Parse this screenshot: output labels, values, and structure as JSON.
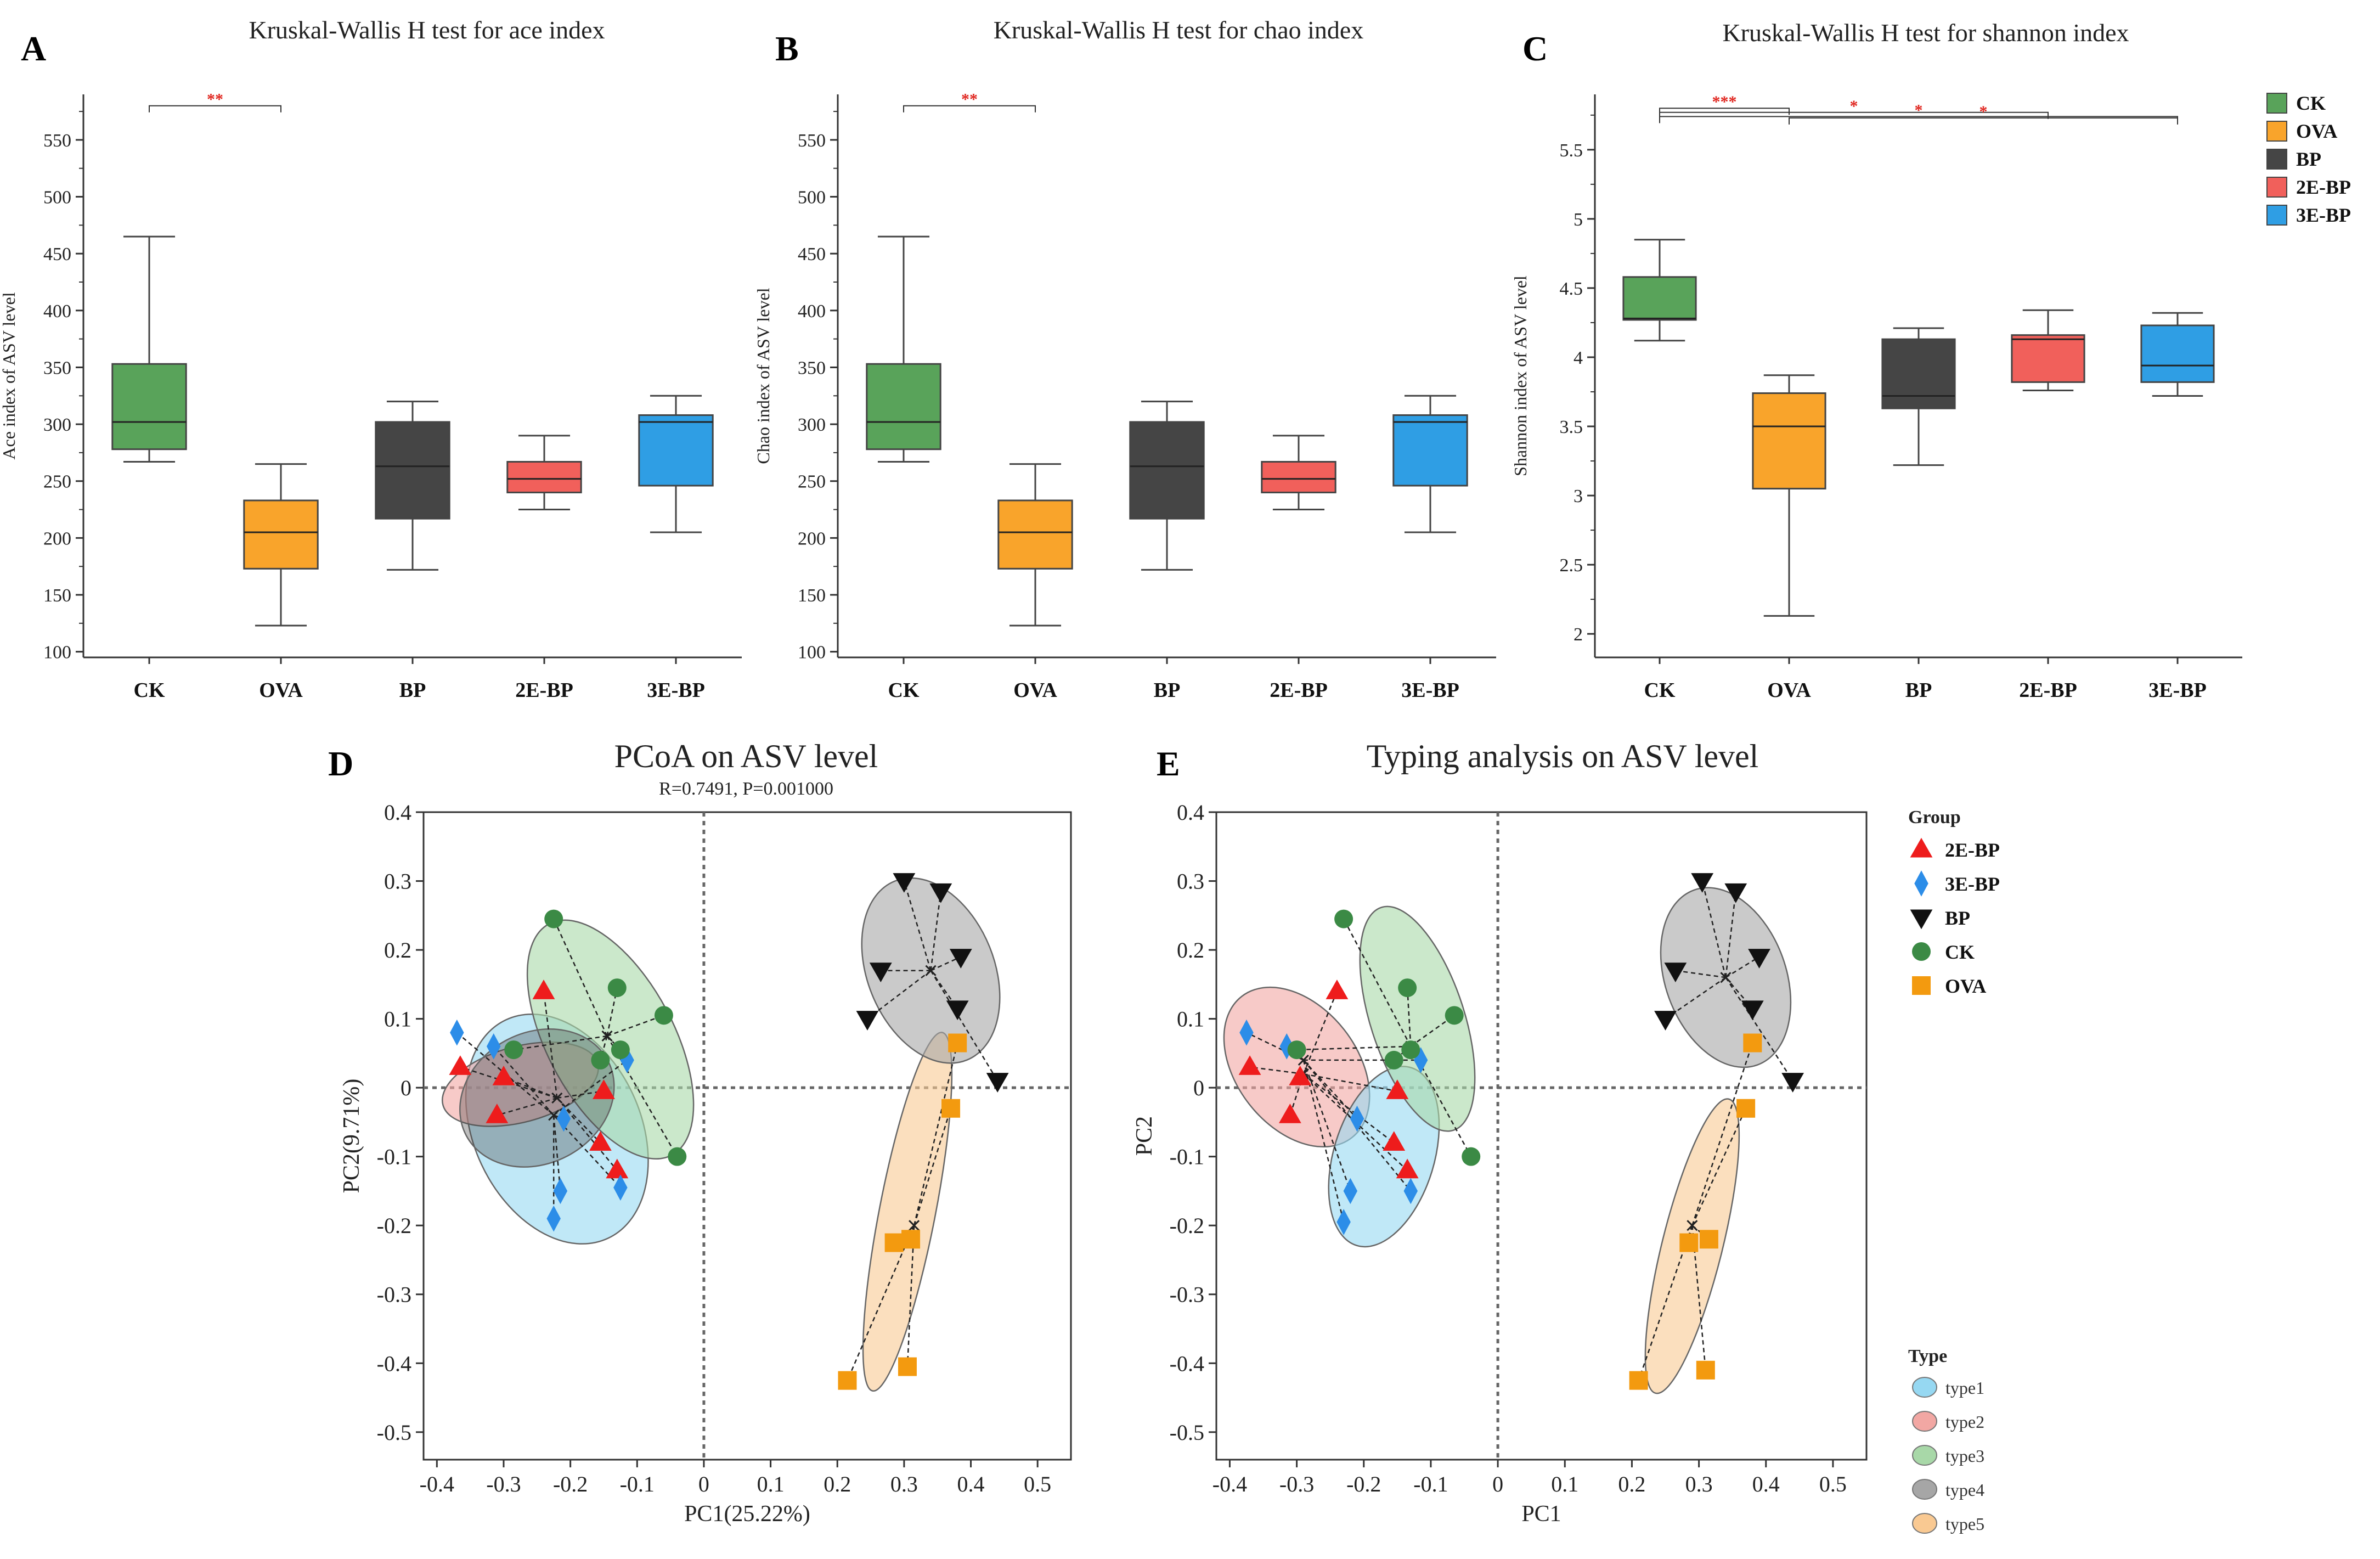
{
  "colors": {
    "CK": "#59a35a",
    "OVA": "#f9a42b",
    "BP": "#454545",
    "2E-BP": "#f1605b",
    "3E-BP": "#2f9ee4",
    "sig": "#e0261f",
    "type1": "#96d8f2",
    "type2": "#f2a7a3",
    "type3": "#a8d8a8",
    "type4": "#a6a6a6",
    "type5": "#f9c992",
    "tri2E": "#ee1c1c",
    "dia3E": "#2c8de8",
    "triBP": "#111111",
    "dotCK": "#3b8a45",
    "sqOVA": "#f39a0f"
  },
  "legend_top": {
    "items": [
      {
        "label": "CK",
        "key": "CK"
      },
      {
        "label": "OVA",
        "key": "OVA"
      },
      {
        "label": "BP",
        "key": "BP"
      },
      {
        "label": "2E-BP",
        "key": "2E-BP"
      },
      {
        "label": "3E-BP",
        "key": "3E-BP"
      }
    ]
  },
  "chart_data": [
    {
      "panel": "A",
      "type": "box",
      "title": "Kruskal-Wallis H test for ace index",
      "ylabel": "Ace index of ASV level",
      "xlabel": "",
      "ylim": [
        95,
        590
      ],
      "yticks": [
        100,
        150,
        200,
        250,
        300,
        350,
        400,
        450,
        500,
        550
      ],
      "categories": [
        "CK",
        "OVA",
        "BP",
        "2E-BP",
        "3E-BP"
      ],
      "boxes": [
        {
          "name": "CK",
          "whisker_low": 267,
          "q1": 278,
          "median": 302,
          "q3": 353,
          "whisker_high": 465
        },
        {
          "name": "OVA",
          "whisker_low": 123,
          "q1": 173,
          "median": 205,
          "q3": 233,
          "whisker_high": 265
        },
        {
          "name": "BP",
          "whisker_low": 172,
          "q1": 217,
          "median": 263,
          "q3": 302,
          "whisker_high": 320
        },
        {
          "name": "2E-BP",
          "whisker_low": 225,
          "q1": 240,
          "median": 252,
          "q3": 267,
          "whisker_high": 290
        },
        {
          "name": "3E-BP",
          "whisker_low": 205,
          "q1": 246,
          "median": 302,
          "q3": 308,
          "whisker_high": 325
        }
      ],
      "significance": [
        {
          "from": "CK",
          "to": "OVA",
          "label": "**",
          "y": 580
        }
      ]
    },
    {
      "panel": "B",
      "type": "box",
      "title": "Kruskal-Wallis H test for chao index",
      "ylabel": "Chao index of ASV level",
      "xlabel": "",
      "ylim": [
        95,
        590
      ],
      "yticks": [
        100,
        150,
        200,
        250,
        300,
        350,
        400,
        450,
        500,
        550
      ],
      "categories": [
        "CK",
        "OVA",
        "BP",
        "2E-BP",
        "3E-BP"
      ],
      "boxes": [
        {
          "name": "CK",
          "whisker_low": 267,
          "q1": 278,
          "median": 302,
          "q3": 353,
          "whisker_high": 465
        },
        {
          "name": "OVA",
          "whisker_low": 123,
          "q1": 173,
          "median": 205,
          "q3": 233,
          "whisker_high": 265
        },
        {
          "name": "BP",
          "whisker_low": 172,
          "q1": 217,
          "median": 263,
          "q3": 302,
          "whisker_high": 320
        },
        {
          "name": "2E-BP",
          "whisker_low": 225,
          "q1": 240,
          "median": 252,
          "q3": 267,
          "whisker_high": 290
        },
        {
          "name": "3E-BP",
          "whisker_low": 205,
          "q1": 246,
          "median": 302,
          "q3": 308,
          "whisker_high": 325
        }
      ],
      "significance": [
        {
          "from": "CK",
          "to": "OVA",
          "label": "**",
          "y": 580
        }
      ]
    },
    {
      "panel": "C",
      "type": "box",
      "title": "Kruskal-Wallis H test for shannon index",
      "ylabel": "Shannon index of ASV level",
      "xlabel": "",
      "ylim": [
        1.83,
        5.9
      ],
      "yticks": [
        2,
        2.5,
        3,
        3.5,
        4,
        4.5,
        5,
        5.5
      ],
      "categories": [
        "CK",
        "OVA",
        "BP",
        "2E-BP",
        "3E-BP"
      ],
      "boxes": [
        {
          "name": "CK",
          "whisker_low": 4.12,
          "q1": 4.27,
          "median": 4.28,
          "q3": 4.58,
          "whisker_high": 4.85
        },
        {
          "name": "OVA",
          "whisker_low": 2.13,
          "q1": 3.05,
          "median": 3.5,
          "q3": 3.74,
          "whisker_high": 3.87
        },
        {
          "name": "BP",
          "whisker_low": 3.22,
          "q1": 3.63,
          "median": 3.72,
          "q3": 4.13,
          "whisker_high": 4.21
        },
        {
          "name": "2E-BP",
          "whisker_low": 3.76,
          "q1": 3.82,
          "median": 4.13,
          "q3": 4.16,
          "whisker_high": 4.34
        },
        {
          "name": "3E-BP",
          "whisker_low": 3.72,
          "q1": 3.82,
          "median": 3.94,
          "q3": 4.23,
          "whisker_high": 4.32
        }
      ],
      "significance": [
        {
          "from": "CK",
          "to": "OVA",
          "label": "***",
          "y": 5.8
        },
        {
          "from": "CK",
          "to": "2E-BP",
          "label": "*",
          "y": 5.77
        },
        {
          "from": "CK",
          "to": "3E-BP",
          "label": "*",
          "y": 5.74
        },
        {
          "from": "OVA",
          "to": "3E-BP",
          "label": "*",
          "y": 5.73
        }
      ]
    },
    {
      "panel": "D",
      "type": "scatter",
      "title": "PCoA on ASV level",
      "subtitle": "R=0.7491, P=0.001000",
      "xlabel": "PC1(25.22%)",
      "ylabel": "PC2(9.71%)",
      "xlim": [
        -0.42,
        0.55
      ],
      "ylim": [
        -0.54,
        0.4
      ],
      "xticks": [
        -0.4,
        -0.3,
        -0.2,
        -0.1,
        0,
        0.1,
        0.2,
        0.3,
        0.4,
        0.5
      ],
      "yticks": [
        -0.5,
        -0.4,
        -0.3,
        -0.2,
        -0.1,
        0,
        0.1,
        0.2,
        0.3,
        0.4
      ],
      "ellipses": [
        {
          "color": "type1",
          "cx": -0.22,
          "cy": -0.06,
          "rx": 0.125,
          "ry": 0.175,
          "angle": -25
        },
        {
          "color": "type2",
          "cx": -0.275,
          "cy": 0.005,
          "rx": 0.12,
          "ry": 0.055,
          "angle": -15
        },
        {
          "color": "type3",
          "cx": -0.14,
          "cy": 0.07,
          "rx": 0.095,
          "ry": 0.19,
          "angle": -28
        },
        {
          "color": "type5",
          "cx": 0.305,
          "cy": -0.18,
          "rx": 0.042,
          "ry": 0.265,
          "angle": 11
        },
        {
          "color": "type4",
          "cx": 0.34,
          "cy": 0.17,
          "rx": 0.095,
          "ry": 0.14,
          "angle": -22
        },
        {
          "color": "BP",
          "cx": -0.25,
          "cy": -0.015,
          "rx": 0.12,
          "ry": 0.095,
          "angle": -28
        }
      ],
      "series": [
        {
          "name": "2E-BP",
          "marker": "triangle",
          "centroid": [
            -0.22,
            -0.015
          ],
          "points": [
            [
              -0.365,
              0.03
            ],
            [
              -0.3,
              0.015
            ],
            [
              -0.24,
              0.14
            ],
            [
              -0.15,
              -0.005
            ],
            [
              -0.155,
              -0.08
            ],
            [
              -0.13,
              -0.12
            ],
            [
              -0.31,
              -0.04
            ]
          ]
        },
        {
          "name": "3E-BP",
          "marker": "diamond",
          "centroid": [
            -0.225,
            -0.04
          ],
          "points": [
            [
              -0.37,
              0.08
            ],
            [
              -0.315,
              0.06
            ],
            [
              -0.115,
              0.04
            ],
            [
              -0.21,
              -0.045
            ],
            [
              -0.215,
              -0.15
            ],
            [
              -0.225,
              -0.19
            ],
            [
              -0.125,
              -0.145
            ]
          ]
        },
        {
          "name": "CK",
          "marker": "circle",
          "centroid": [
            -0.145,
            0.075
          ],
          "points": [
            [
              -0.225,
              0.245
            ],
            [
              -0.13,
              0.145
            ],
            [
              -0.06,
              0.105
            ],
            [
              -0.155,
              0.04
            ],
            [
              -0.285,
              0.055
            ],
            [
              -0.125,
              0.055
            ],
            [
              -0.04,
              -0.1
            ]
          ]
        },
        {
          "name": "OVA",
          "marker": "square",
          "centroid": [
            0.315,
            -0.2
          ],
          "points": [
            [
              0.38,
              0.065
            ],
            [
              0.37,
              -0.03
            ],
            [
              0.285,
              -0.225
            ],
            [
              0.31,
              -0.22
            ],
            [
              0.215,
              -0.425
            ],
            [
              0.305,
              -0.405
            ]
          ]
        },
        {
          "name": "BP",
          "marker": "triangle-down",
          "centroid": [
            0.34,
            0.17
          ],
          "points": [
            [
              0.3,
              0.3
            ],
            [
              0.355,
              0.285
            ],
            [
              0.265,
              0.17
            ],
            [
              0.385,
              0.19
            ],
            [
              0.245,
              0.1
            ],
            [
              0.38,
              0.115
            ],
            [
              0.44,
              0.01
            ]
          ]
        }
      ]
    },
    {
      "panel": "E",
      "type": "scatter",
      "title": "Typing analysis on ASV level",
      "xlabel": "PC1",
      "ylabel": "PC2",
      "xlim": [
        -0.42,
        0.55
      ],
      "ylim": [
        -0.54,
        0.4
      ],
      "xticks": [
        -0.4,
        -0.3,
        -0.2,
        -0.1,
        0,
        0.1,
        0.2,
        0.3,
        0.4,
        0.5
      ],
      "yticks": [
        -0.5,
        -0.4,
        -0.3,
        -0.2,
        -0.1,
        0,
        0.1,
        0.2,
        0.3,
        0.4
      ],
      "ellipses": [
        {
          "color": "type2",
          "cx": -0.3,
          "cy": 0.03,
          "rx": 0.09,
          "ry": 0.13,
          "angle": -38
        },
        {
          "color": "type1",
          "cx": -0.17,
          "cy": -0.1,
          "rx": 0.075,
          "ry": 0.135,
          "angle": 17
        },
        {
          "color": "type3",
          "cx": -0.12,
          "cy": 0.1,
          "rx": 0.07,
          "ry": 0.17,
          "angle": -18
        },
        {
          "color": "type4",
          "cx": 0.34,
          "cy": 0.16,
          "rx": 0.09,
          "ry": 0.135,
          "angle": -20
        },
        {
          "color": "type5",
          "cx": 0.29,
          "cy": -0.23,
          "rx": 0.045,
          "ry": 0.22,
          "angle": 14
        }
      ],
      "series": [
        {
          "name": "2E-BP",
          "marker": "triangle",
          "centroid": [
            -0.29,
            0.02
          ],
          "points": [
            [
              -0.24,
              0.14
            ],
            [
              -0.37,
              0.03
            ],
            [
              -0.295,
              0.015
            ],
            [
              -0.31,
              -0.04
            ],
            [
              -0.15,
              -0.005
            ],
            [
              -0.155,
              -0.08
            ],
            [
              -0.135,
              -0.12
            ]
          ]
        },
        {
          "name": "3E-BP",
          "marker": "diamond",
          "centroid": [
            -0.29,
            0.04
          ],
          "points": [
            [
              -0.375,
              0.08
            ],
            [
              -0.315,
              0.06
            ],
            [
              -0.115,
              0.04
            ],
            [
              -0.21,
              -0.045
            ],
            [
              -0.22,
              -0.15
            ],
            [
              -0.23,
              -0.195
            ],
            [
              -0.13,
              -0.15
            ]
          ]
        },
        {
          "name": "CK",
          "marker": "circle",
          "centroid": [
            -0.13,
            0.06
          ],
          "points": [
            [
              -0.23,
              0.245
            ],
            [
              -0.135,
              0.145
            ],
            [
              -0.065,
              0.105
            ],
            [
              -0.155,
              0.04
            ],
            [
              -0.3,
              0.055
            ],
            [
              -0.13,
              0.055
            ],
            [
              -0.04,
              -0.1
            ]
          ]
        },
        {
          "name": "OVA",
          "marker": "square",
          "centroid": [
            0.29,
            -0.2
          ],
          "points": [
            [
              0.38,
              0.065
            ],
            [
              0.37,
              -0.03
            ],
            [
              0.285,
              -0.225
            ],
            [
              0.315,
              -0.22
            ],
            [
              0.21,
              -0.425
            ],
            [
              0.31,
              -0.41
            ]
          ]
        },
        {
          "name": "BP",
          "marker": "triangle-down",
          "centroid": [
            0.34,
            0.16
          ],
          "points": [
            [
              0.305,
              0.3
            ],
            [
              0.355,
              0.285
            ],
            [
              0.265,
              0.17
            ],
            [
              0.39,
              0.19
            ],
            [
              0.25,
              0.1
            ],
            [
              0.38,
              0.115
            ],
            [
              0.44,
              0.01
            ]
          ]
        }
      ]
    }
  ],
  "panel_letters": [
    "A",
    "B",
    "C",
    "D",
    "E"
  ],
  "group_legend": {
    "title": "Group",
    "items": [
      {
        "label": "2E-BP",
        "marker": "triangle",
        "color": "tri2E"
      },
      {
        "label": "3E-BP",
        "marker": "diamond",
        "color": "dia3E"
      },
      {
        "label": "BP",
        "marker": "triangle-down",
        "color": "triBP"
      },
      {
        "label": "CK",
        "marker": "circle",
        "color": "dotCK"
      },
      {
        "label": "OVA",
        "marker": "square",
        "color": "sqOVA"
      }
    ]
  },
  "type_legend": {
    "title": "Type",
    "items": [
      {
        "label": "type1",
        "color": "type1"
      },
      {
        "label": "type2",
        "color": "type2"
      },
      {
        "label": "type3",
        "color": "type3"
      },
      {
        "label": "type4",
        "color": "type4"
      },
      {
        "label": "type5",
        "color": "type5"
      }
    ]
  }
}
